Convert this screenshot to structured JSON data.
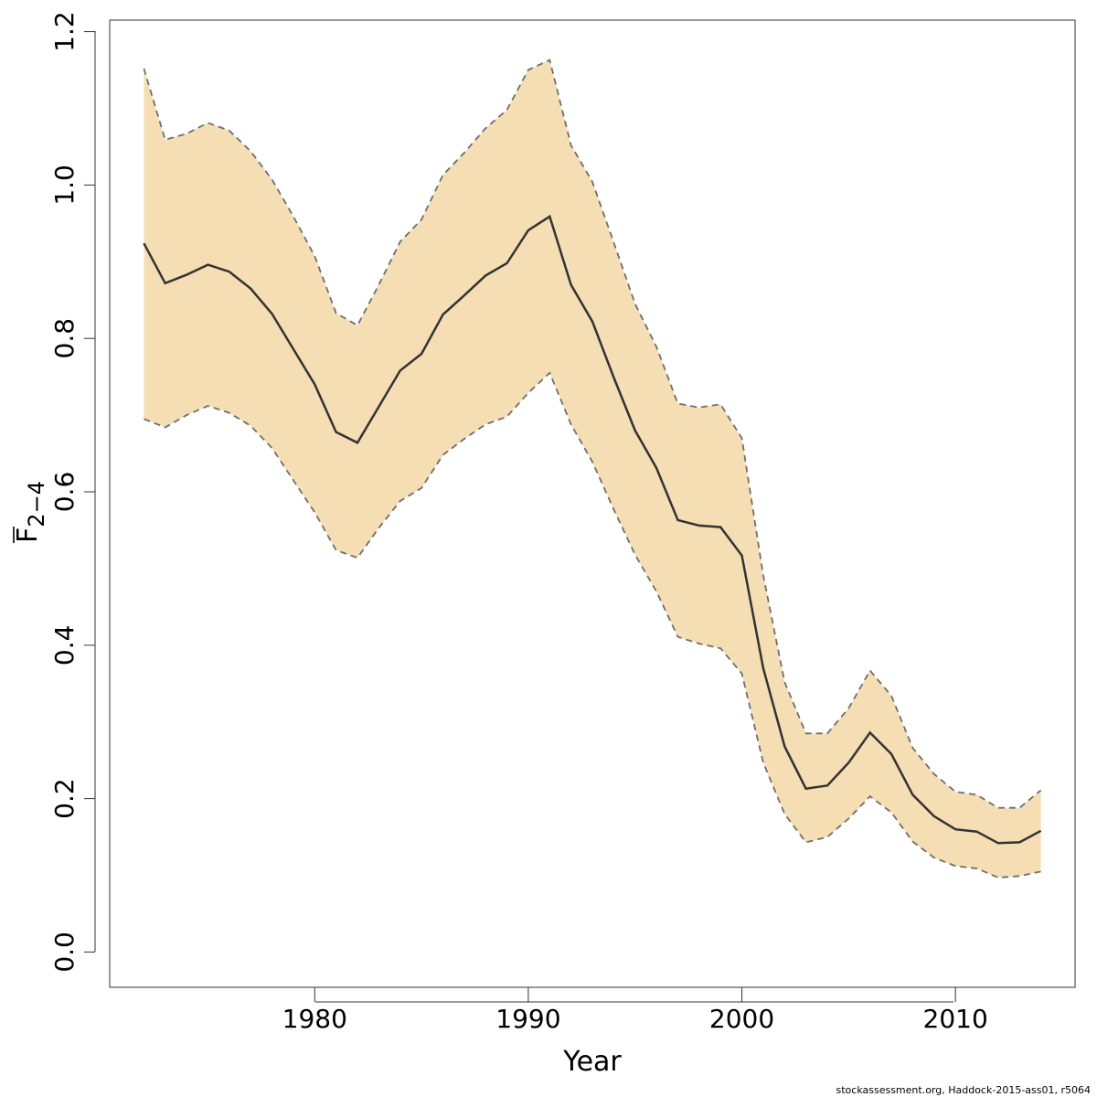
{
  "chart_data": {
    "type": "area",
    "title": "",
    "xlabel": "Year",
    "ylabel_main": "F",
    "ylabel_subscript": "2−4",
    "xlim": [
      1970.4,
      2015.6
    ],
    "ylim": [
      -0.046,
      1.215
    ],
    "xticks": [
      1980,
      1990,
      2000,
      2010
    ],
    "yticks": [
      0.0,
      0.2,
      0.4,
      0.6,
      0.8,
      1.0,
      1.2
    ],
    "ytick_labels": [
      "0.0",
      "0.2",
      "0.4",
      "0.6",
      "0.8",
      "1.0",
      "1.2"
    ],
    "grid": false,
    "legend": "none",
    "colors": {
      "band": "#f5deb3",
      "line": "#333333",
      "bounds": "#6e6e6e"
    },
    "x": [
      1972,
      1973,
      1974,
      1975,
      1976,
      1977,
      1978,
      1979,
      1980,
      1981,
      1982,
      1983,
      1984,
      1985,
      1986,
      1987,
      1988,
      1989,
      1990,
      1991,
      1992,
      1993,
      1994,
      1995,
      1996,
      1997,
      1998,
      1999,
      2000,
      2001,
      2002,
      2003,
      2004,
      2005,
      2006,
      2007,
      2008,
      2009,
      2010,
      2011,
      2012,
      2013,
      2014
    ],
    "series": [
      {
        "values": [
          0.924,
          0.872,
          0.883,
          0.896,
          0.887,
          0.865,
          0.832,
          0.786,
          0.74,
          0.678,
          0.664,
          0.711,
          0.758,
          0.78,
          0.831,
          0.856,
          0.882,
          0.898,
          0.941,
          0.959,
          0.87,
          0.822,
          0.749,
          0.68,
          0.631,
          0.563,
          0.556,
          0.554,
          0.517,
          0.37,
          0.268,
          0.213,
          0.217,
          0.247,
          0.286,
          0.258,
          0.205,
          0.177,
          0.16,
          0.157,
          0.142,
          0.143,
          0.158
        ]
      },
      {
        "values": [
          0.695,
          0.684,
          0.7,
          0.712,
          0.703,
          0.686,
          0.657,
          0.615,
          0.573,
          0.524,
          0.514,
          0.553,
          0.588,
          0.605,
          0.648,
          0.669,
          0.688,
          0.698,
          0.729,
          0.755,
          0.688,
          0.639,
          0.577,
          0.518,
          0.47,
          0.411,
          0.402,
          0.396,
          0.363,
          0.247,
          0.18,
          0.143,
          0.15,
          0.174,
          0.203,
          0.182,
          0.144,
          0.123,
          0.112,
          0.109,
          0.097,
          0.099,
          0.105
        ]
      },
      {
        "values": [
          1.152,
          1.059,
          1.067,
          1.081,
          1.071,
          1.044,
          1.007,
          0.959,
          0.907,
          0.833,
          0.817,
          0.87,
          0.926,
          0.955,
          1.013,
          1.042,
          1.074,
          1.098,
          1.15,
          1.163,
          1.052,
          1.004,
          0.925,
          0.845,
          0.789,
          0.715,
          0.71,
          0.714,
          0.67,
          0.491,
          0.352,
          0.285,
          0.285,
          0.318,
          0.367,
          0.334,
          0.266,
          0.232,
          0.209,
          0.205,
          0.188,
          0.188,
          0.211
        ]
      }
    ]
  },
  "footer_text": "stockassessment.org, Haddock-2015-ass01, r5064"
}
